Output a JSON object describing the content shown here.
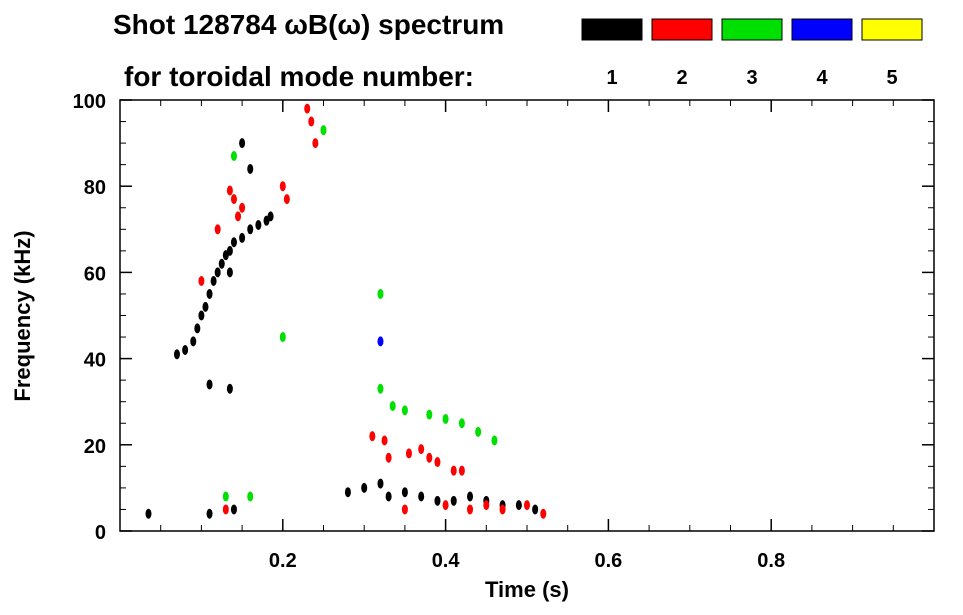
{
  "chart_data": {
    "type": "scatter",
    "title_line1": "Shot 128784 ωB(ω) spectrum",
    "title_line2": "for toroidal mode number:",
    "xlabel": "Time (s)",
    "ylabel": "Frequency (kHz)",
    "xlim": [
      0.0,
      1.0
    ],
    "ylim": [
      0,
      100
    ],
    "x_ticks": [
      0.2,
      0.4,
      0.6,
      0.8
    ],
    "x_tick_labels": [
      "0.2",
      "0.4",
      "0.6",
      "0.8"
    ],
    "y_ticks": [
      0,
      20,
      40,
      60,
      80,
      100
    ],
    "y_tick_labels": [
      "0",
      "20",
      "40",
      "60",
      "80",
      "100"
    ],
    "grid": false,
    "legend_position": "top-right",
    "series": [
      {
        "name": "1",
        "color": "#000000",
        "points": [
          [
            0.07,
            41
          ],
          [
            0.08,
            42
          ],
          [
            0.09,
            44
          ],
          [
            0.095,
            47
          ],
          [
            0.1,
            50
          ],
          [
            0.105,
            52
          ],
          [
            0.11,
            55
          ],
          [
            0.115,
            58
          ],
          [
            0.12,
            60
          ],
          [
            0.125,
            62
          ],
          [
            0.13,
            64
          ],
          [
            0.135,
            65
          ],
          [
            0.14,
            67
          ],
          [
            0.15,
            68
          ],
          [
            0.16,
            70
          ],
          [
            0.17,
            71
          ],
          [
            0.18,
            72
          ],
          [
            0.185,
            73
          ],
          [
            0.15,
            90
          ],
          [
            0.16,
            84
          ],
          [
            0.135,
            60
          ],
          [
            0.11,
            34
          ],
          [
            0.135,
            33
          ],
          [
            0.28,
            9
          ],
          [
            0.3,
            10
          ],
          [
            0.32,
            11
          ],
          [
            0.33,
            8
          ],
          [
            0.35,
            9
          ],
          [
            0.37,
            8
          ],
          [
            0.39,
            7
          ],
          [
            0.41,
            7
          ],
          [
            0.43,
            8
          ],
          [
            0.45,
            7
          ],
          [
            0.47,
            6
          ],
          [
            0.49,
            6
          ],
          [
            0.51,
            5
          ],
          [
            0.035,
            4
          ],
          [
            0.11,
            4
          ],
          [
            0.14,
            5
          ]
        ]
      },
      {
        "name": "2",
        "color": "#ff0000",
        "points": [
          [
            0.1,
            58
          ],
          [
            0.12,
            70
          ],
          [
            0.135,
            79
          ],
          [
            0.14,
            77
          ],
          [
            0.145,
            73
          ],
          [
            0.15,
            75
          ],
          [
            0.2,
            80
          ],
          [
            0.205,
            77
          ],
          [
            0.23,
            98
          ],
          [
            0.235,
            95
          ],
          [
            0.24,
            90
          ],
          [
            0.31,
            22
          ],
          [
            0.325,
            21
          ],
          [
            0.33,
            17
          ],
          [
            0.355,
            18
          ],
          [
            0.37,
            19
          ],
          [
            0.38,
            17
          ],
          [
            0.39,
            16
          ],
          [
            0.41,
            14
          ],
          [
            0.42,
            14
          ],
          [
            0.35,
            5
          ],
          [
            0.4,
            6
          ],
          [
            0.43,
            5
          ],
          [
            0.45,
            6
          ],
          [
            0.47,
            5
          ],
          [
            0.5,
            6
          ],
          [
            0.52,
            4
          ],
          [
            0.13,
            5
          ]
        ]
      },
      {
        "name": "3",
        "color": "#00e000",
        "points": [
          [
            0.14,
            87
          ],
          [
            0.25,
            93
          ],
          [
            0.2,
            45
          ],
          [
            0.32,
            55
          ],
          [
            0.32,
            33
          ],
          [
            0.335,
            29
          ],
          [
            0.35,
            28
          ],
          [
            0.38,
            27
          ],
          [
            0.4,
            26
          ],
          [
            0.42,
            25
          ],
          [
            0.44,
            23
          ],
          [
            0.46,
            21
          ],
          [
            0.13,
            8
          ],
          [
            0.16,
            8
          ]
        ]
      },
      {
        "name": "4",
        "color": "#0000ff",
        "points": [
          [
            0.32,
            44
          ]
        ]
      },
      {
        "name": "5",
        "color": "#ffff00",
        "points": []
      }
    ]
  }
}
